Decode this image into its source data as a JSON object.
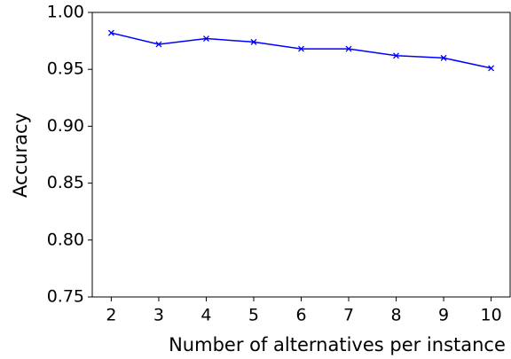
{
  "chart_data": {
    "type": "line",
    "x_label": "Number of alternatives per instance",
    "y_label": "Accuracy",
    "x": [
      2,
      3,
      4,
      5,
      6,
      7,
      8,
      9,
      10
    ],
    "series": [
      {
        "color": "#0000ff",
        "values": [
          0.982,
          0.972,
          0.977,
          0.974,
          0.968,
          0.968,
          0.962,
          0.96,
          0.951
        ]
      }
    ],
    "xlim": [
      1.6,
      10.4
    ],
    "xticks": [
      2,
      3,
      4,
      5,
      6,
      7,
      8,
      9,
      10
    ],
    "ylim": [
      0.75,
      1.0
    ],
    "yticks": [
      0.75,
      {
        "value": 0.8,
        "label": "0.80"
      },
      0.85,
      {
        "value": 0.9,
        "label": "0.90"
      },
      0.95,
      {
        "value": 1.0,
        "label": "1.00"
      }
    ],
    "marker": "x"
  }
}
